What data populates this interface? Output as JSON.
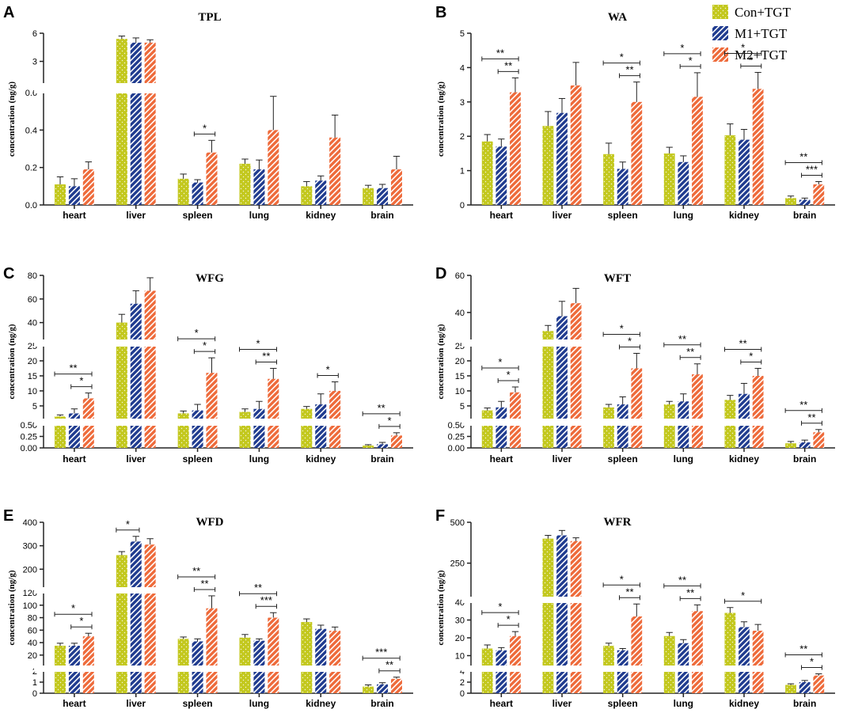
{
  "colors": {
    "con": "#c3c81e",
    "m1": "#1f3b8f",
    "m2": "#ee6a3a",
    "axis": "#222222"
  },
  "legend": [
    {
      "label": "Con+TGT",
      "color": "#c3c81e"
    },
    {
      "label": "M1+TGT",
      "color": "#1f3b8f"
    },
    {
      "label": "M2+TGT",
      "color": "#ee6a3a"
    }
  ],
  "chart_data": [
    {
      "letter": "A",
      "title": "TPL",
      "type": "bar",
      "ylabel": "concentration (ng/g)",
      "categories": [
        "heart",
        "liver",
        "spleen",
        "lung",
        "kidney",
        "brain"
      ],
      "segments": [
        {
          "range": [
            0,
            0.6
          ],
          "ticks": [
            {
              "v": 0,
              "label": "0.0"
            },
            {
              "v": 0.2,
              "label": "0.2"
            },
            {
              "v": 0.4,
              "label": "0.4"
            },
            {
              "v": 0.6,
              "label": "0.6"
            }
          ]
        },
        {
          "range": [
            0.6,
            6
          ],
          "ticks": [
            {
              "v": 3,
              "label": "3"
            },
            {
              "v": 6,
              "label": "6"
            }
          ]
        }
      ],
      "series": [
        {
          "name": "Con+TGT",
          "values": [
            0.11,
            5.4,
            0.14,
            0.22,
            0.1,
            0.09
          ],
          "errors": [
            0.04,
            0.3,
            0.025,
            0.025,
            0.025,
            0.015
          ]
        },
        {
          "name": "M1+TGT",
          "values": [
            0.1,
            5.0,
            0.12,
            0.19,
            0.13,
            0.09
          ],
          "errors": [
            0.04,
            0.5,
            0.015,
            0.05,
            0.025,
            0.02
          ]
        },
        {
          "name": "M2+TGT",
          "values": [
            0.19,
            5.0,
            0.28,
            0.4,
            0.36,
            0.19
          ],
          "errors": [
            0.04,
            0.3,
            0.065,
            0.18,
            0.12,
            0.07
          ]
        }
      ],
      "significance": [
        {
          "cat": 2,
          "from": 1,
          "to": 2,
          "label": "*"
        }
      ]
    },
    {
      "letter": "B",
      "title": "WA",
      "type": "bar",
      "ylabel": "concentration (ng/g)",
      "categories": [
        "heart",
        "liver",
        "spleen",
        "lung",
        "kidney",
        "brain"
      ],
      "segments": [
        {
          "range": [
            0,
            5
          ],
          "ticks": [
            {
              "v": 0,
              "label": "0"
            },
            {
              "v": 1,
              "label": "1"
            },
            {
              "v": 2,
              "label": "2"
            },
            {
              "v": 3,
              "label": "3"
            },
            {
              "v": 4,
              "label": "4"
            },
            {
              "v": 5,
              "label": "5"
            }
          ]
        }
      ],
      "series": [
        {
          "name": "Con+TGT",
          "values": [
            1.85,
            2.3,
            1.48,
            1.5,
            2.03,
            0.2
          ],
          "errors": [
            0.2,
            0.42,
            0.32,
            0.18,
            0.33,
            0.06
          ]
        },
        {
          "name": "M1+TGT",
          "values": [
            1.7,
            2.68,
            1.05,
            1.25,
            1.9,
            0.15
          ],
          "errors": [
            0.22,
            0.42,
            0.2,
            0.18,
            0.3,
            0.05
          ]
        },
        {
          "name": "M2+TGT",
          "values": [
            3.28,
            3.48,
            3.0,
            3.15,
            3.38,
            0.6
          ],
          "errors": [
            0.42,
            0.67,
            0.58,
            0.7,
            0.48,
            0.08
          ]
        }
      ],
      "significance": [
        {
          "cat": 0,
          "from": 1,
          "to": 2,
          "label": "**"
        },
        {
          "cat": 0,
          "from": 0,
          "to": 2,
          "label": "**"
        },
        {
          "cat": 2,
          "from": 1,
          "to": 2,
          "label": "**"
        },
        {
          "cat": 2,
          "from": 0,
          "to": 2,
          "label": "*"
        },
        {
          "cat": 3,
          "from": 1,
          "to": 2,
          "label": "*"
        },
        {
          "cat": 3,
          "from": 0,
          "to": 2,
          "label": "*"
        },
        {
          "cat": 4,
          "from": 1,
          "to": 2,
          "label": "*"
        },
        {
          "cat": 4,
          "from": 0,
          "to": 2,
          "label": "*"
        },
        {
          "cat": 5,
          "from": 1,
          "to": 2,
          "label": "***"
        },
        {
          "cat": 5,
          "from": 0,
          "to": 2,
          "label": "**"
        }
      ]
    },
    {
      "letter": "C",
      "title": "WFG",
      "type": "bar",
      "ylabel": "concentration (ng/g)",
      "categories": [
        "heart",
        "liver",
        "spleen",
        "lung",
        "kidney",
        "brain"
      ],
      "segments": [
        {
          "range": [
            0,
            0.5
          ],
          "ticks": [
            {
              "v": 0,
              "label": "0.00"
            },
            {
              "v": 0.25,
              "label": "0.25"
            },
            {
              "v": 0.5,
              "label": "0.50"
            }
          ]
        },
        {
          "range": [
            0.5,
            25
          ],
          "ticks": [
            {
              "v": 5,
              "label": "5"
            },
            {
              "v": 10,
              "label": "10"
            },
            {
              "v": 15,
              "label": "15"
            },
            {
              "v": 20,
              "label": "20"
            },
            {
              "v": 25,
              "label": "25"
            }
          ]
        },
        {
          "range": [
            25,
            80
          ],
          "ticks": [
            {
              "v": 40,
              "label": "40"
            },
            {
              "v": 60,
              "label": "60"
            },
            {
              "v": 80,
              "label": "80"
            }
          ]
        }
      ],
      "series": [
        {
          "name": "Con+TGT",
          "values": [
            1.5,
            40,
            2.5,
            3.0,
            4.0,
            0.05
          ],
          "errors": [
            0.5,
            7,
            0.8,
            1.0,
            0.8,
            0.02
          ]
        },
        {
          "name": "M1+TGT",
          "values": [
            2.5,
            56,
            3.5,
            4.0,
            5.5,
            0.08
          ],
          "errors": [
            1.5,
            11,
            2.0,
            2.5,
            3.5,
            0.04
          ]
        },
        {
          "name": "M2+TGT",
          "values": [
            7.5,
            67,
            16.0,
            14.0,
            10.0,
            0.27
          ],
          "errors": [
            1.8,
            11,
            5.0,
            3.5,
            3.0,
            0.06
          ]
        }
      ],
      "significance": [
        {
          "cat": 0,
          "from": 1,
          "to": 2,
          "label": "*"
        },
        {
          "cat": 0,
          "from": 0,
          "to": 2,
          "label": "**"
        },
        {
          "cat": 2,
          "from": 1,
          "to": 2,
          "label": "*"
        },
        {
          "cat": 2,
          "from": 0,
          "to": 2,
          "label": "*"
        },
        {
          "cat": 3,
          "from": 1,
          "to": 2,
          "label": "**"
        },
        {
          "cat": 3,
          "from": 0,
          "to": 2,
          "label": "*"
        },
        {
          "cat": 4,
          "from": 1,
          "to": 2,
          "label": "*"
        },
        {
          "cat": 5,
          "from": 1,
          "to": 2,
          "label": "*"
        },
        {
          "cat": 5,
          "from": 0,
          "to": 2,
          "label": "**"
        }
      ]
    },
    {
      "letter": "D",
      "title": "WFT",
      "type": "bar",
      "ylabel": "concentration (ng/g)",
      "categories": [
        "heart",
        "liver",
        "spleen",
        "lung",
        "kidney",
        "brain"
      ],
      "segments": [
        {
          "range": [
            0,
            0.5
          ],
          "ticks": [
            {
              "v": 0,
              "label": "0.00"
            },
            {
              "v": 0.25,
              "label": "0.25"
            },
            {
              "v": 0.5,
              "label": "0.50"
            }
          ]
        },
        {
          "range": [
            0.5,
            25
          ],
          "ticks": [
            {
              "v": 5,
              "label": "5"
            },
            {
              "v": 10,
              "label": "10"
            },
            {
              "v": 15,
              "label": "15"
            },
            {
              "v": 20,
              "label": "20"
            },
            {
              "v": 25,
              "label": "25"
            }
          ]
        },
        {
          "range": [
            25,
            60
          ],
          "ticks": [
            {
              "v": 40,
              "label": "40"
            },
            {
              "v": 60,
              "label": "60"
            }
          ]
        }
      ],
      "series": [
        {
          "name": "Con+TGT",
          "values": [
            3.5,
            30,
            4.5,
            5.5,
            7.0,
            0.1
          ],
          "errors": [
            0.8,
            3,
            1.0,
            1.0,
            1.5,
            0.04
          ]
        },
        {
          "name": "M1+TGT",
          "values": [
            4.5,
            38,
            5.5,
            6.5,
            9.0,
            0.12
          ],
          "errors": [
            2.0,
            8,
            2.5,
            2.5,
            3.5,
            0.05
          ]
        },
        {
          "name": "M2+TGT",
          "values": [
            9.5,
            45,
            17.5,
            15.5,
            15.0,
            0.34
          ],
          "errors": [
            1.8,
            8,
            5.0,
            3.5,
            2.5,
            0.06
          ]
        }
      ],
      "significance": [
        {
          "cat": 0,
          "from": 1,
          "to": 2,
          "label": "*"
        },
        {
          "cat": 0,
          "from": 0,
          "to": 2,
          "label": "*"
        },
        {
          "cat": 2,
          "from": 1,
          "to": 2,
          "label": "*"
        },
        {
          "cat": 2,
          "from": 0,
          "to": 2,
          "label": "*"
        },
        {
          "cat": 3,
          "from": 1,
          "to": 2,
          "label": "**"
        },
        {
          "cat": 3,
          "from": 0,
          "to": 2,
          "label": "**"
        },
        {
          "cat": 4,
          "from": 1,
          "to": 2,
          "label": "*"
        },
        {
          "cat": 4,
          "from": 0,
          "to": 2,
          "label": "**"
        },
        {
          "cat": 5,
          "from": 1,
          "to": 2,
          "label": "**"
        },
        {
          "cat": 5,
          "from": 0,
          "to": 2,
          "label": "**"
        }
      ]
    },
    {
      "letter": "E",
      "title": "WFD",
      "type": "bar",
      "ylabel": "concentration (ng/g)",
      "categories": [
        "heart",
        "liver",
        "spleen",
        "lung",
        "kidney",
        "brain"
      ],
      "segments": [
        {
          "range": [
            0,
            2
          ],
          "ticks": [
            {
              "v": 0,
              "label": "0"
            },
            {
              "v": 1,
              "label": "1"
            },
            {
              "v": 2,
              "label": "2"
            }
          ]
        },
        {
          "range": [
            2,
            120
          ],
          "ticks": [
            {
              "v": 20,
              "label": "20"
            },
            {
              "v": 40,
              "label": "40"
            },
            {
              "v": 60,
              "label": "60"
            },
            {
              "v": 80,
              "label": "80"
            },
            {
              "v": 100,
              "label": "100"
            },
            {
              "v": 120,
              "label": "120"
            }
          ]
        },
        {
          "range": [
            120,
            400
          ],
          "ticks": [
            {
              "v": 200,
              "label": "200"
            },
            {
              "v": 300,
              "label": "300"
            },
            {
              "v": 400,
              "label": "400"
            }
          ]
        }
      ],
      "series": [
        {
          "name": "Con+TGT",
          "values": [
            35,
            260,
            46,
            48,
            73,
            0.6
          ],
          "errors": [
            4,
            15,
            3,
            5,
            5,
            0.15
          ]
        },
        {
          "name": "M1+TGT",
          "values": [
            35,
            318,
            42,
            43,
            62,
            0.8
          ],
          "errors": [
            4,
            22,
            4,
            3,
            6,
            0.15
          ]
        },
        {
          "name": "M2+TGT",
          "values": [
            50,
            305,
            95,
            80,
            59,
            1.3
          ],
          "errors": [
            5,
            25,
            20,
            8,
            6,
            0.15
          ]
        }
      ],
      "significance": [
        {
          "cat": 0,
          "from": 1,
          "to": 2,
          "label": "*"
        },
        {
          "cat": 0,
          "from": 0,
          "to": 2,
          "label": "*"
        },
        {
          "cat": 1,
          "from": 0,
          "to": 1,
          "label": "*"
        },
        {
          "cat": 2,
          "from": 1,
          "to": 2,
          "label": "**"
        },
        {
          "cat": 2,
          "from": 0,
          "to": 2,
          "label": "**"
        },
        {
          "cat": 3,
          "from": 1,
          "to": 2,
          "label": "***"
        },
        {
          "cat": 3,
          "from": 0,
          "to": 2,
          "label": "**"
        },
        {
          "cat": 5,
          "from": 1,
          "to": 2,
          "label": "**"
        },
        {
          "cat": 5,
          "from": 0,
          "to": 2,
          "label": "***"
        }
      ]
    },
    {
      "letter": "F",
      "title": "WFR",
      "type": "bar",
      "ylabel": "concentration (ng/g)",
      "categories": [
        "heart",
        "liver",
        "spleen",
        "lung",
        "kidney",
        "brain"
      ],
      "segments": [
        {
          "range": [
            0,
            4
          ],
          "ticks": [
            {
              "v": 0,
              "label": "0"
            },
            {
              "v": 2,
              "label": "2"
            },
            {
              "v": 4,
              "label": "4"
            }
          ]
        },
        {
          "range": [
            4,
            40
          ],
          "ticks": [
            {
              "v": 10,
              "label": "10"
            },
            {
              "v": 20,
              "label": "20"
            },
            {
              "v": 30,
              "label": "30"
            },
            {
              "v": 40,
              "label": "40"
            }
          ]
        },
        {
          "range": [
            40,
            500
          ],
          "ticks": [
            {
              "v": 250,
              "label": "250"
            },
            {
              "v": 500,
              "label": "500"
            }
          ]
        }
      ],
      "series": [
        {
          "name": "Con+TGT",
          "values": [
            14,
            400,
            15.5,
            21,
            34,
            1.5
          ],
          "errors": [
            2,
            20,
            1.5,
            2,
            3,
            0.2
          ]
        },
        {
          "name": "M1+TGT",
          "values": [
            13,
            420,
            13,
            17,
            26,
            2.0
          ],
          "errors": [
            1.5,
            30,
            1,
            2,
            3,
            0.3
          ]
        },
        {
          "name": "M2+TGT",
          "values": [
            21,
            385,
            32,
            35,
            24,
            3.2
          ],
          "errors": [
            2.5,
            20,
            7,
            3.5,
            3.5,
            0.3
          ]
        }
      ],
      "significance": [
        {
          "cat": 0,
          "from": 1,
          "to": 2,
          "label": "*"
        },
        {
          "cat": 0,
          "from": 0,
          "to": 2,
          "label": "*"
        },
        {
          "cat": 2,
          "from": 1,
          "to": 2,
          "label": "**"
        },
        {
          "cat": 2,
          "from": 0,
          "to": 2,
          "label": "*"
        },
        {
          "cat": 3,
          "from": 1,
          "to": 2,
          "label": "**"
        },
        {
          "cat": 3,
          "from": 0,
          "to": 2,
          "label": "**"
        },
        {
          "cat": 4,
          "from": 0,
          "to": 2,
          "label": "*"
        },
        {
          "cat": 5,
          "from": 1,
          "to": 2,
          "label": "*"
        },
        {
          "cat": 5,
          "from": 0,
          "to": 2,
          "label": "**"
        }
      ]
    }
  ]
}
